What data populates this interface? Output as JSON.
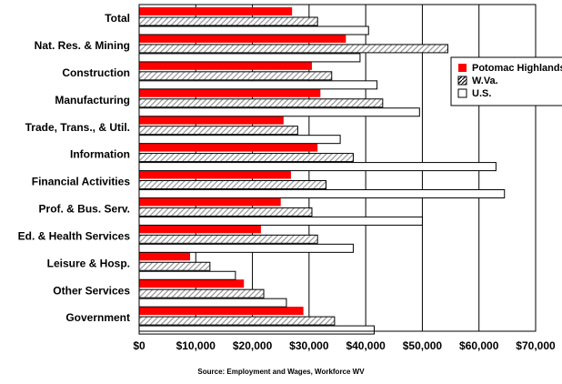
{
  "chart_data": {
    "type": "bar",
    "orientation": "horizontal",
    "categories": [
      "Total",
      "Nat. Res. & Mining",
      "Construction",
      "Manufacturing",
      "Trade, Trans., & Util.",
      "Information",
      "Financial Activities",
      "Prof. & Bus. Serv.",
      "Ed. & Health Services",
      "Leisure & Hosp.",
      "Other Services",
      "Government"
    ],
    "series": [
      {
        "name": "Potomac Highlands",
        "color": "#ff0000",
        "pattern": "solid",
        "values": [
          27000,
          36500,
          30500,
          32000,
          25500,
          31500,
          26800,
          25000,
          21500,
          9000,
          18500,
          29000
        ]
      },
      {
        "name": "W.Va.",
        "color": "#ffffff",
        "pattern": "diagonal-hatch",
        "values": [
          31500,
          54500,
          34000,
          43000,
          28000,
          37800,
          33000,
          30500,
          31500,
          12500,
          22000,
          34500
        ]
      },
      {
        "name": "U.S.",
        "color": "#ffffff",
        "pattern": "outline",
        "values": [
          40500,
          39000,
          42000,
          49500,
          35500,
          63000,
          64500,
          50000,
          37800,
          17000,
          26000,
          41500
        ]
      }
    ],
    "xlim": [
      0,
      70000
    ],
    "xticks": [
      "$0",
      "$10,000",
      "$20,000",
      "$30,000",
      "$40,000",
      "$50,000",
      "$60,000",
      "$70,000"
    ],
    "grid": "vertical",
    "legend": "right",
    "source": "Source: Employment and Wages, Workforce WV"
  }
}
